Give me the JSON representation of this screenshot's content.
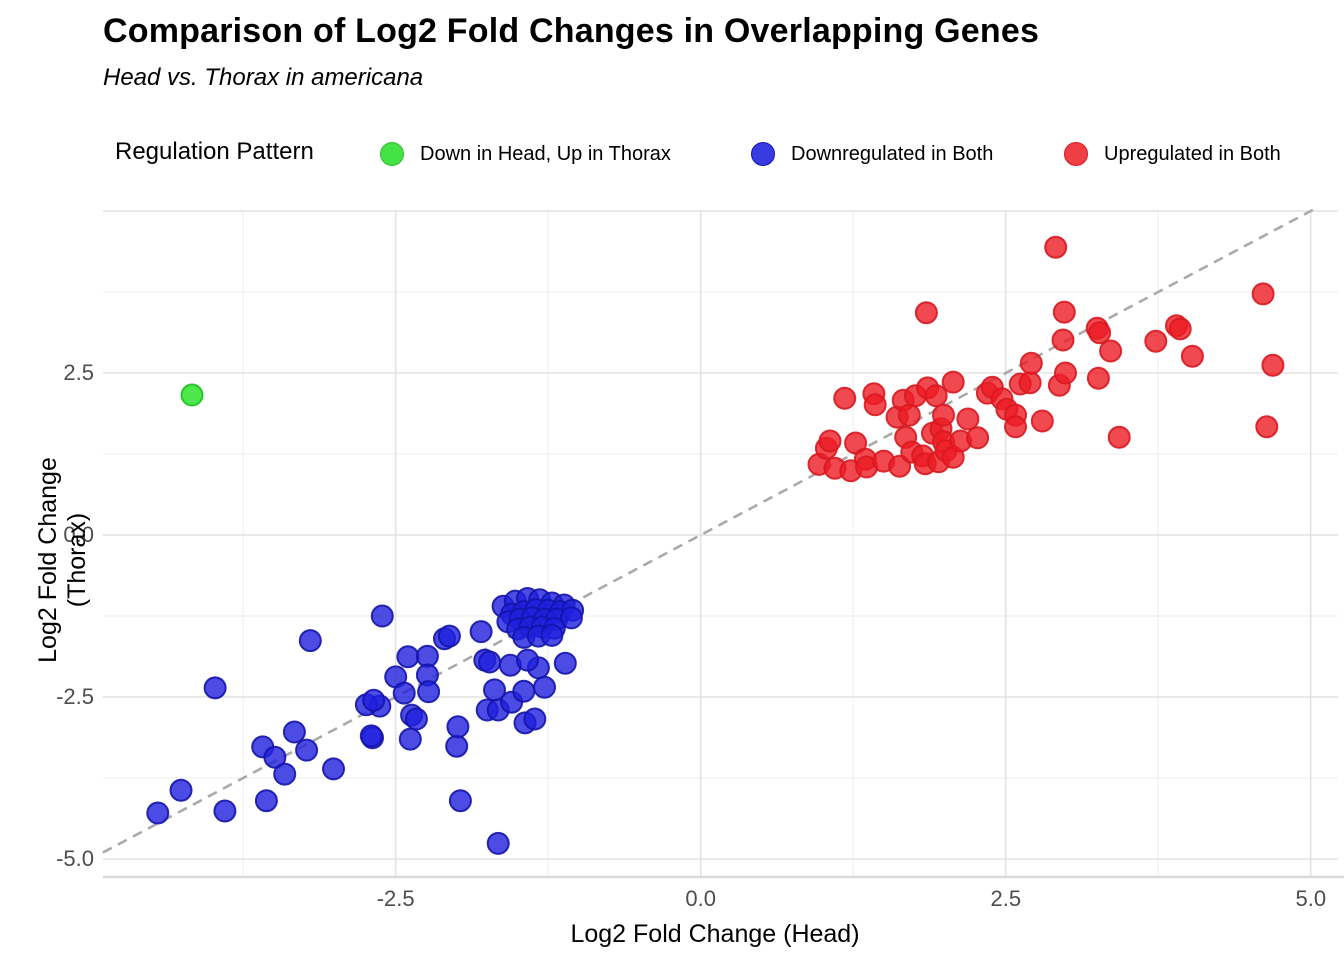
{
  "header": {
    "title": "Comparison of Log2 Fold Changes in Overlapping Genes",
    "subtitle": "Head vs. Thorax in americana"
  },
  "legend": {
    "title": "Regulation Pattern",
    "items": [
      {
        "label": "Down in Head, Up in Thorax",
        "color": "#44e244",
        "border": "#2fbf2f"
      },
      {
        "label": "Downregulated in Both",
        "color": "#3a3ae2",
        "border": "#1414aa"
      },
      {
        "label": "Upregulated in Both",
        "color": "#ef3e44",
        "border": "#d81820"
      }
    ]
  },
  "chart_data": {
    "type": "scatter",
    "title": "Comparison of Log2 Fold Changes in Overlapping Genes",
    "subtitle": "Head vs. Thorax in americana",
    "xlabel": "Log2 Fold Change (Head)",
    "ylabel": "Log2 Fold Change (Thorax)",
    "xlim": [
      -4.9,
      5.2
    ],
    "ylim": [
      -5.3,
      5.0
    ],
    "x_ticks": [
      -2.5,
      0.0,
      2.5,
      5.0
    ],
    "y_ticks": [
      2.5,
      0.0,
      -2.5,
      -5.0
    ],
    "x_tick_labels": [
      "-2.5",
      "0.0",
      "2.5",
      "5.0"
    ],
    "y_tick_labels": [
      "2.5",
      "0.0",
      "-2.5",
      "-5.0"
    ],
    "x_grid_major": [
      -2.5,
      0.0,
      2.5,
      5.0
    ],
    "y_grid_major": [
      5.0,
      2.5,
      0.0,
      -2.5,
      -5.0
    ],
    "x_grid_minor": [
      -3.75,
      -1.25,
      1.25,
      3.75
    ],
    "y_grid_minor": [
      3.75,
      1.25,
      -1.25,
      -3.75
    ],
    "grid": {
      "major_color": "#e3e3e3",
      "minor_color": "#f0f0f0",
      "axis_line_color": "#dadada"
    },
    "legend_position": "top",
    "reference_line": {
      "type": "identity y=x",
      "style": "dashed",
      "color": "#aaaaaa"
    },
    "series": [
      {
        "name": "Down in Head, Up in Thorax",
        "key": "down-head-up-thorax",
        "color": "#2ee22e",
        "stroke": "#1fc01f",
        "fill_opacity": 0.85,
        "points": [
          [
            -4.17,
            2.16
          ]
        ]
      },
      {
        "name": "Downregulated in Both",
        "key": "downregulated-in-both",
        "color": "#1f1fdd",
        "stroke": "#1414aa",
        "fill_opacity": 0.8,
        "points": [
          [
            -4.45,
            -4.29
          ],
          [
            -4.26,
            -3.94
          ],
          [
            -3.9,
            -4.26
          ],
          [
            -3.56,
            -4.1
          ],
          [
            -3.98,
            -2.36
          ],
          [
            -3.59,
            -3.27
          ],
          [
            -3.49,
            -3.43
          ],
          [
            -3.41,
            -3.69
          ],
          [
            -3.33,
            -3.04
          ],
          [
            -3.23,
            -3.32
          ],
          [
            -3.01,
            -3.61
          ],
          [
            -3.2,
            -1.63
          ],
          [
            -2.69,
            -3.13
          ],
          [
            -2.63,
            -2.64
          ],
          [
            -2.74,
            -2.62
          ],
          [
            -2.68,
            -2.55
          ],
          [
            -2.61,
            -1.25
          ],
          [
            -2.5,
            -2.19
          ],
          [
            -2.43,
            -2.44
          ],
          [
            -2.4,
            -1.88
          ],
          [
            -2.37,
            -2.78
          ],
          [
            -2.33,
            -2.84
          ],
          [
            -2.7,
            -3.1
          ],
          [
            -2.38,
            -3.15
          ],
          [
            -2.24,
            -1.87
          ],
          [
            -2.24,
            -2.16
          ],
          [
            -2.23,
            -2.42
          ],
          [
            -2.1,
            -1.6
          ],
          [
            -2.06,
            -1.56
          ],
          [
            -2.0,
            -3.26
          ],
          [
            -1.99,
            -2.96
          ],
          [
            -1.97,
            -4.1
          ],
          [
            -1.66,
            -4.76
          ],
          [
            -1.8,
            -1.49
          ],
          [
            -1.77,
            -1.93
          ],
          [
            -1.75,
            -2.7
          ],
          [
            -1.69,
            -2.39
          ],
          [
            -1.66,
            -2.7
          ],
          [
            -1.56,
            -2.01
          ],
          [
            -1.55,
            -2.58
          ],
          [
            -1.45,
            -2.41
          ],
          [
            -1.44,
            -2.9
          ],
          [
            -1.36,
            -2.84
          ],
          [
            -1.28,
            -2.35
          ],
          [
            -1.11,
            -1.98
          ],
          [
            -1.33,
            -2.05
          ],
          [
            -1.42,
            -1.93
          ],
          [
            -1.73,
            -1.96
          ],
          [
            -1.62,
            -1.1
          ],
          [
            -1.52,
            -1.02
          ],
          [
            -1.42,
            -0.98
          ],
          [
            -1.32,
            -1.0
          ],
          [
            -1.22,
            -1.05
          ],
          [
            -1.12,
            -1.08
          ],
          [
            -1.55,
            -1.22
          ],
          [
            -1.45,
            -1.18
          ],
          [
            -1.35,
            -1.15
          ],
          [
            -1.25,
            -1.16
          ],
          [
            -1.15,
            -1.18
          ],
          [
            -1.05,
            -1.16
          ],
          [
            -1.58,
            -1.34
          ],
          [
            -1.48,
            -1.3
          ],
          [
            -1.38,
            -1.28
          ],
          [
            -1.28,
            -1.3
          ],
          [
            -1.18,
            -1.3
          ],
          [
            -1.06,
            -1.28
          ],
          [
            -1.5,
            -1.45
          ],
          [
            -1.4,
            -1.42
          ],
          [
            -1.3,
            -1.42
          ],
          [
            -1.2,
            -1.44
          ],
          [
            -1.45,
            -1.58
          ],
          [
            -1.33,
            -1.56
          ],
          [
            -1.22,
            -1.55
          ]
        ]
      },
      {
        "name": "Upregulated in Both",
        "key": "upregulated-in-both",
        "color": "#ed1c24",
        "stroke": "#d81820",
        "fill_opacity": 0.8,
        "points": [
          [
            0.97,
            1.09
          ],
          [
            1.03,
            1.34
          ],
          [
            1.06,
            1.45
          ],
          [
            1.1,
            1.03
          ],
          [
            1.18,
            2.11
          ],
          [
            1.23,
            0.99
          ],
          [
            1.27,
            1.42
          ],
          [
            1.35,
            1.17
          ],
          [
            1.36,
            1.05
          ],
          [
            1.42,
            2.18
          ],
          [
            1.43,
            2.01
          ],
          [
            1.5,
            1.14
          ],
          [
            1.61,
            1.82
          ],
          [
            1.63,
            1.06
          ],
          [
            1.66,
            2.08
          ],
          [
            1.68,
            1.51
          ],
          [
            1.71,
            1.85
          ],
          [
            1.73,
            1.28
          ],
          [
            1.76,
            2.15
          ],
          [
            1.82,
            1.22
          ],
          [
            1.84,
            1.1
          ],
          [
            1.85,
            3.43
          ],
          [
            1.86,
            2.27
          ],
          [
            1.9,
            1.57
          ],
          [
            1.93,
            2.15
          ],
          [
            1.95,
            1.13
          ],
          [
            1.97,
            1.64
          ],
          [
            1.99,
            1.44
          ],
          [
            1.99,
            1.85
          ],
          [
            2.01,
            1.3
          ],
          [
            2.07,
            1.2
          ],
          [
            2.07,
            2.36
          ],
          [
            2.13,
            1.45
          ],
          [
            2.19,
            1.79
          ],
          [
            2.27,
            1.5
          ],
          [
            2.35,
            2.19
          ],
          [
            2.39,
            2.28
          ],
          [
            2.47,
            2.1
          ],
          [
            2.51,
            1.94
          ],
          [
            2.58,
            1.85
          ],
          [
            2.58,
            1.67
          ],
          [
            2.62,
            2.33
          ],
          [
            2.7,
            2.35
          ],
          [
            2.71,
            2.65
          ],
          [
            2.8,
            1.76
          ],
          [
            2.91,
            4.44
          ],
          [
            2.94,
            2.31
          ],
          [
            2.97,
            3.01
          ],
          [
            2.98,
            3.44
          ],
          [
            2.99,
            2.5
          ],
          [
            3.25,
            3.19
          ],
          [
            3.26,
            2.42
          ],
          [
            3.27,
            3.12
          ],
          [
            3.36,
            2.84
          ],
          [
            3.43,
            1.51
          ],
          [
            3.73,
            2.99
          ],
          [
            3.9,
            3.23
          ],
          [
            3.93,
            3.18
          ],
          [
            4.03,
            2.76
          ],
          [
            4.61,
            3.72
          ],
          [
            4.64,
            1.67
          ],
          [
            4.69,
            2.62
          ]
        ]
      }
    ]
  }
}
